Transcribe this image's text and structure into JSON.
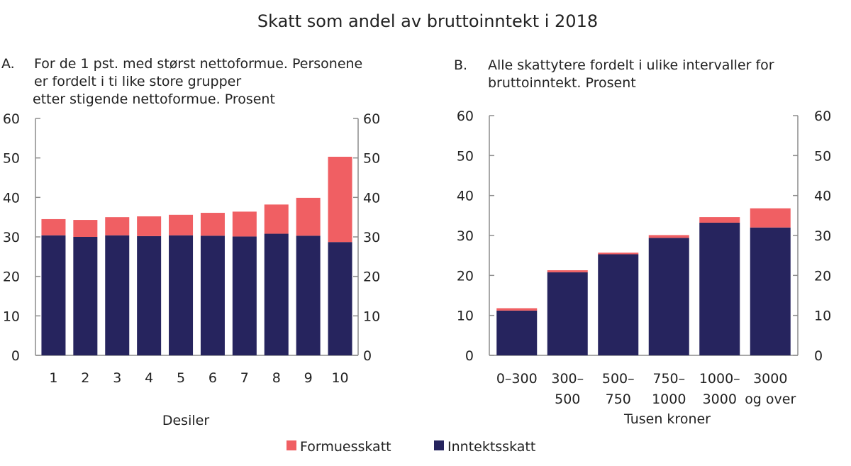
{
  "colors": {
    "formuesskatt": "#f05f63",
    "inntektsskatt": "#26245e"
  },
  "chart_data": {
    "type": "bar",
    "stacked": true,
    "title": "Skatt som andel av bruttoinntekt i 2018",
    "legend": {
      "placement": "bottom",
      "entries": [
        "Formuesskatt",
        "Inntektsskatt"
      ]
    },
    "panels": [
      {
        "label": "A.",
        "subtitle_lines": [
          "For de 1 pst. med størst nettoformue. Personene",
          "er fordelt i ti like store grupper",
          "etter stigende nettoformue. Prosent"
        ],
        "xlabel": "Desiler",
        "ylim": [
          0,
          60
        ],
        "yticks": [
          "0",
          "10",
          "20",
          "30",
          "40",
          "50",
          "60"
        ],
        "categories": [
          [
            "1"
          ],
          [
            "2"
          ],
          [
            "3"
          ],
          [
            "4"
          ],
          [
            "5"
          ],
          [
            "6"
          ],
          [
            "7"
          ],
          [
            "8"
          ],
          [
            "9"
          ],
          [
            "10"
          ]
        ],
        "series": [
          {
            "name": "Inntektsskatt",
            "values": [
              30.4,
              30.0,
              30.4,
              30.2,
              30.4,
              30.3,
              30.1,
              30.8,
              30.3,
              28.7
            ]
          },
          {
            "name": "Formuesskatt",
            "values": [
              4.1,
              4.3,
              4.6,
              5.0,
              5.2,
              5.8,
              6.3,
              7.4,
              9.6,
              21.6
            ]
          }
        ]
      },
      {
        "label": "B.",
        "subtitle_lines": [
          "Alle skattytere fordelt i ulike intervaller for",
          "bruttoinntekt. Prosent"
        ],
        "xlabel": "Tusen kroner",
        "ylim": [
          0,
          60
        ],
        "yticks": [
          "0",
          "10",
          "20",
          "30",
          "40",
          "50",
          "60"
        ],
        "categories": [
          [
            "0–300"
          ],
          [
            "300–",
            "500"
          ],
          [
            "500–",
            "750"
          ],
          [
            "750–",
            "1000"
          ],
          [
            "1000–",
            "3000"
          ],
          [
            "3000",
            "og over"
          ]
        ],
        "series": [
          {
            "name": "Inntektsskatt",
            "values": [
              11.2,
              20.8,
              25.3,
              29.4,
              33.2,
              32.0
            ]
          },
          {
            "name": "Formuesskatt",
            "values": [
              0.6,
              0.5,
              0.4,
              0.7,
              1.4,
              4.8
            ]
          }
        ]
      }
    ]
  }
}
